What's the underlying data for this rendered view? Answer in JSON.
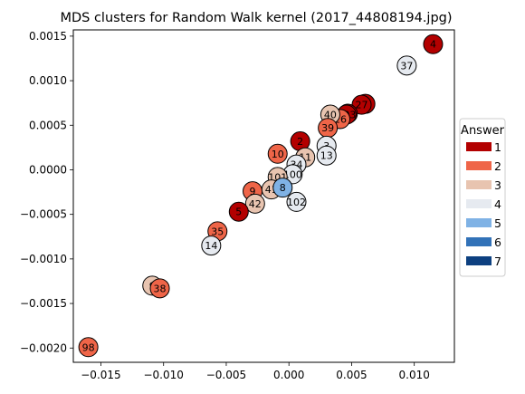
{
  "chart_data": {
    "type": "scatter",
    "title": "MDS clusters for Random Walk kernel (2017_44808194.jpg)",
    "xlabel": "",
    "ylabel": "",
    "xlim": [
      -0.0172,
      0.0132
    ],
    "ylim": [
      -0.00216,
      0.00157
    ],
    "x_ticks": [
      -0.015,
      -0.01,
      -0.005,
      0.0,
      0.005,
      0.01
    ],
    "x_tick_labels": [
      "−0.015",
      "−0.010",
      "−0.005",
      "0.000",
      "0.005",
      "0.010"
    ],
    "y_ticks": [
      -0.002,
      -0.0015,
      -0.001,
      -0.0005,
      0.0,
      0.0005,
      0.001,
      0.0015
    ],
    "y_tick_labels": [
      "−0.0020",
      "−0.0015",
      "−0.0010",
      "−0.0005",
      "0.0000",
      "0.0005",
      "0.0010",
      "0.0015"
    ],
    "grid": false,
    "legend": {
      "title": "Answer",
      "placement": "right",
      "entries": [
        {
          "label": "1",
          "color": "#b30000"
        },
        {
          "label": "2",
          "color": "#ef6548"
        },
        {
          "label": "3",
          "color": "#e8c4b0"
        },
        {
          "label": "4",
          "color": "#e6eaf0"
        },
        {
          "label": "5",
          "color": "#7fb2e5"
        },
        {
          "label": "6",
          "color": "#3272b8"
        },
        {
          "label": "7",
          "color": "#0d4080"
        }
      ]
    },
    "points": [
      {
        "label": "4",
        "x": 0.0115,
        "y": 0.00141,
        "answer": 1
      },
      {
        "label": "37",
        "x": 0.0094,
        "y": 0.00117,
        "answer": 4
      },
      {
        "label": "",
        "x": 0.0061,
        "y": 0.00074,
        "answer": 1
      },
      {
        "label": "27",
        "x": 0.0058,
        "y": 0.00073,
        "answer": 1
      },
      {
        "label": "",
        "x": 0.0047,
        "y": 0.00063,
        "answer": 1
      },
      {
        "label": "103",
        "x": 0.0046,
        "y": 0.00062,
        "answer": 1
      },
      {
        "label": "",
        "x": 0.004,
        "y": 0.00057,
        "answer": 2
      },
      {
        "label": "26",
        "x": 0.0041,
        "y": 0.00057,
        "answer": 2
      },
      {
        "label": "40",
        "x": 0.0033,
        "y": 0.00062,
        "answer": 3
      },
      {
        "label": "39",
        "x": 0.0031,
        "y": 0.00047,
        "answer": 2
      },
      {
        "label": "2",
        "x": 0.0009,
        "y": 0.00032,
        "answer": 1
      },
      {
        "label": "3",
        "x": 0.003,
        "y": 0.00027,
        "answer": 4
      },
      {
        "label": "13",
        "x": 0.003,
        "y": 0.00016,
        "answer": 4
      },
      {
        "label": "10",
        "x": -0.0009,
        "y": 0.00018,
        "answer": 2
      },
      {
        "label": "11",
        "x": 0.0013,
        "y": 0.00014,
        "answer": 3
      },
      {
        "label": "34",
        "x": 0.0006,
        "y": 6e-05,
        "answer": 4
      },
      {
        "label": "100",
        "x": 0.0003,
        "y": -5e-05,
        "answer": 4
      },
      {
        "label": "101",
        "x": -0.0009,
        "y": -8e-05,
        "answer": 3
      },
      {
        "label": "9",
        "x": -0.0029,
        "y": -0.00024,
        "answer": 2
      },
      {
        "label": "41",
        "x": -0.0014,
        "y": -0.00022,
        "answer": 3
      },
      {
        "label": "8",
        "x": -0.0005,
        "y": -0.0002,
        "answer": 5
      },
      {
        "label": "42",
        "x": -0.0027,
        "y": -0.00038,
        "answer": 3
      },
      {
        "label": "102",
        "x": 0.0006,
        "y": -0.00036,
        "answer": 4
      },
      {
        "label": "5",
        "x": -0.004,
        "y": -0.00047,
        "answer": 1
      },
      {
        "label": "35",
        "x": -0.0057,
        "y": -0.00069,
        "answer": 2
      },
      {
        "label": "14",
        "x": -0.0062,
        "y": -0.00085,
        "answer": 4
      },
      {
        "label": "9",
        "x": -0.0109,
        "y": -0.0013,
        "answer": 3
      },
      {
        "label": "38",
        "x": -0.0103,
        "y": -0.00133,
        "answer": 2
      },
      {
        "label": "98",
        "x": -0.016,
        "y": -0.00199,
        "answer": 2
      }
    ]
  }
}
